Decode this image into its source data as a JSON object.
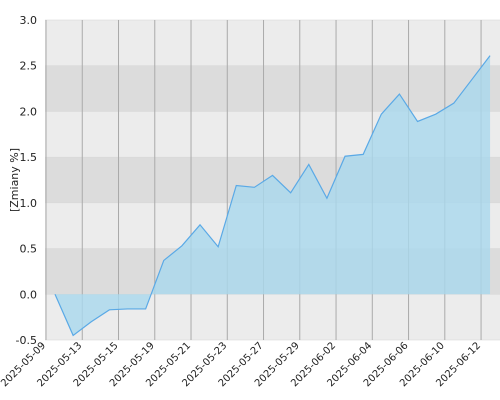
{
  "chart_data": {
    "type": "area",
    "y_label": "[Zmiany %]",
    "x": [
      "2025-05-09",
      null,
      "2025-05-13",
      null,
      "2025-05-15",
      null,
      "2025-05-19",
      null,
      "2025-05-21",
      null,
      "2025-05-23",
      null,
      "2025-05-27",
      null,
      "2025-05-29",
      null,
      "2025-06-02",
      null,
      "2025-06-04",
      null,
      "2025-06-06",
      null,
      "2025-06-10",
      null,
      "2025-06-12"
    ],
    "values": [
      0.0,
      -0.45,
      -0.3,
      -0.17,
      -0.16,
      -0.16,
      0.37,
      0.53,
      0.76,
      0.52,
      1.19,
      1.17,
      1.3,
      1.11,
      1.42,
      1.05,
      1.51,
      1.53,
      1.97,
      2.19,
      1.89,
      1.97,
      2.09,
      2.35,
      2.61
    ],
    "color": "#5aa9e6",
    "fill": "#a9d8ee",
    "ylim": [
      -0.5,
      3.0
    ],
    "yticks": [
      -0.5,
      {
        "value": 0.0,
        "label": "0.0"
      },
      0.5,
      {
        "value": 1.0,
        "label": "1.0"
      },
      1.5,
      {
        "value": 2.0,
        "label": "2.0"
      },
      2.5,
      {
        "value": 3.0,
        "label": "3.0"
      }
    ],
    "band_colors": [
      "#ececec",
      "#dcdcdc"
    ],
    "grid": true
  }
}
